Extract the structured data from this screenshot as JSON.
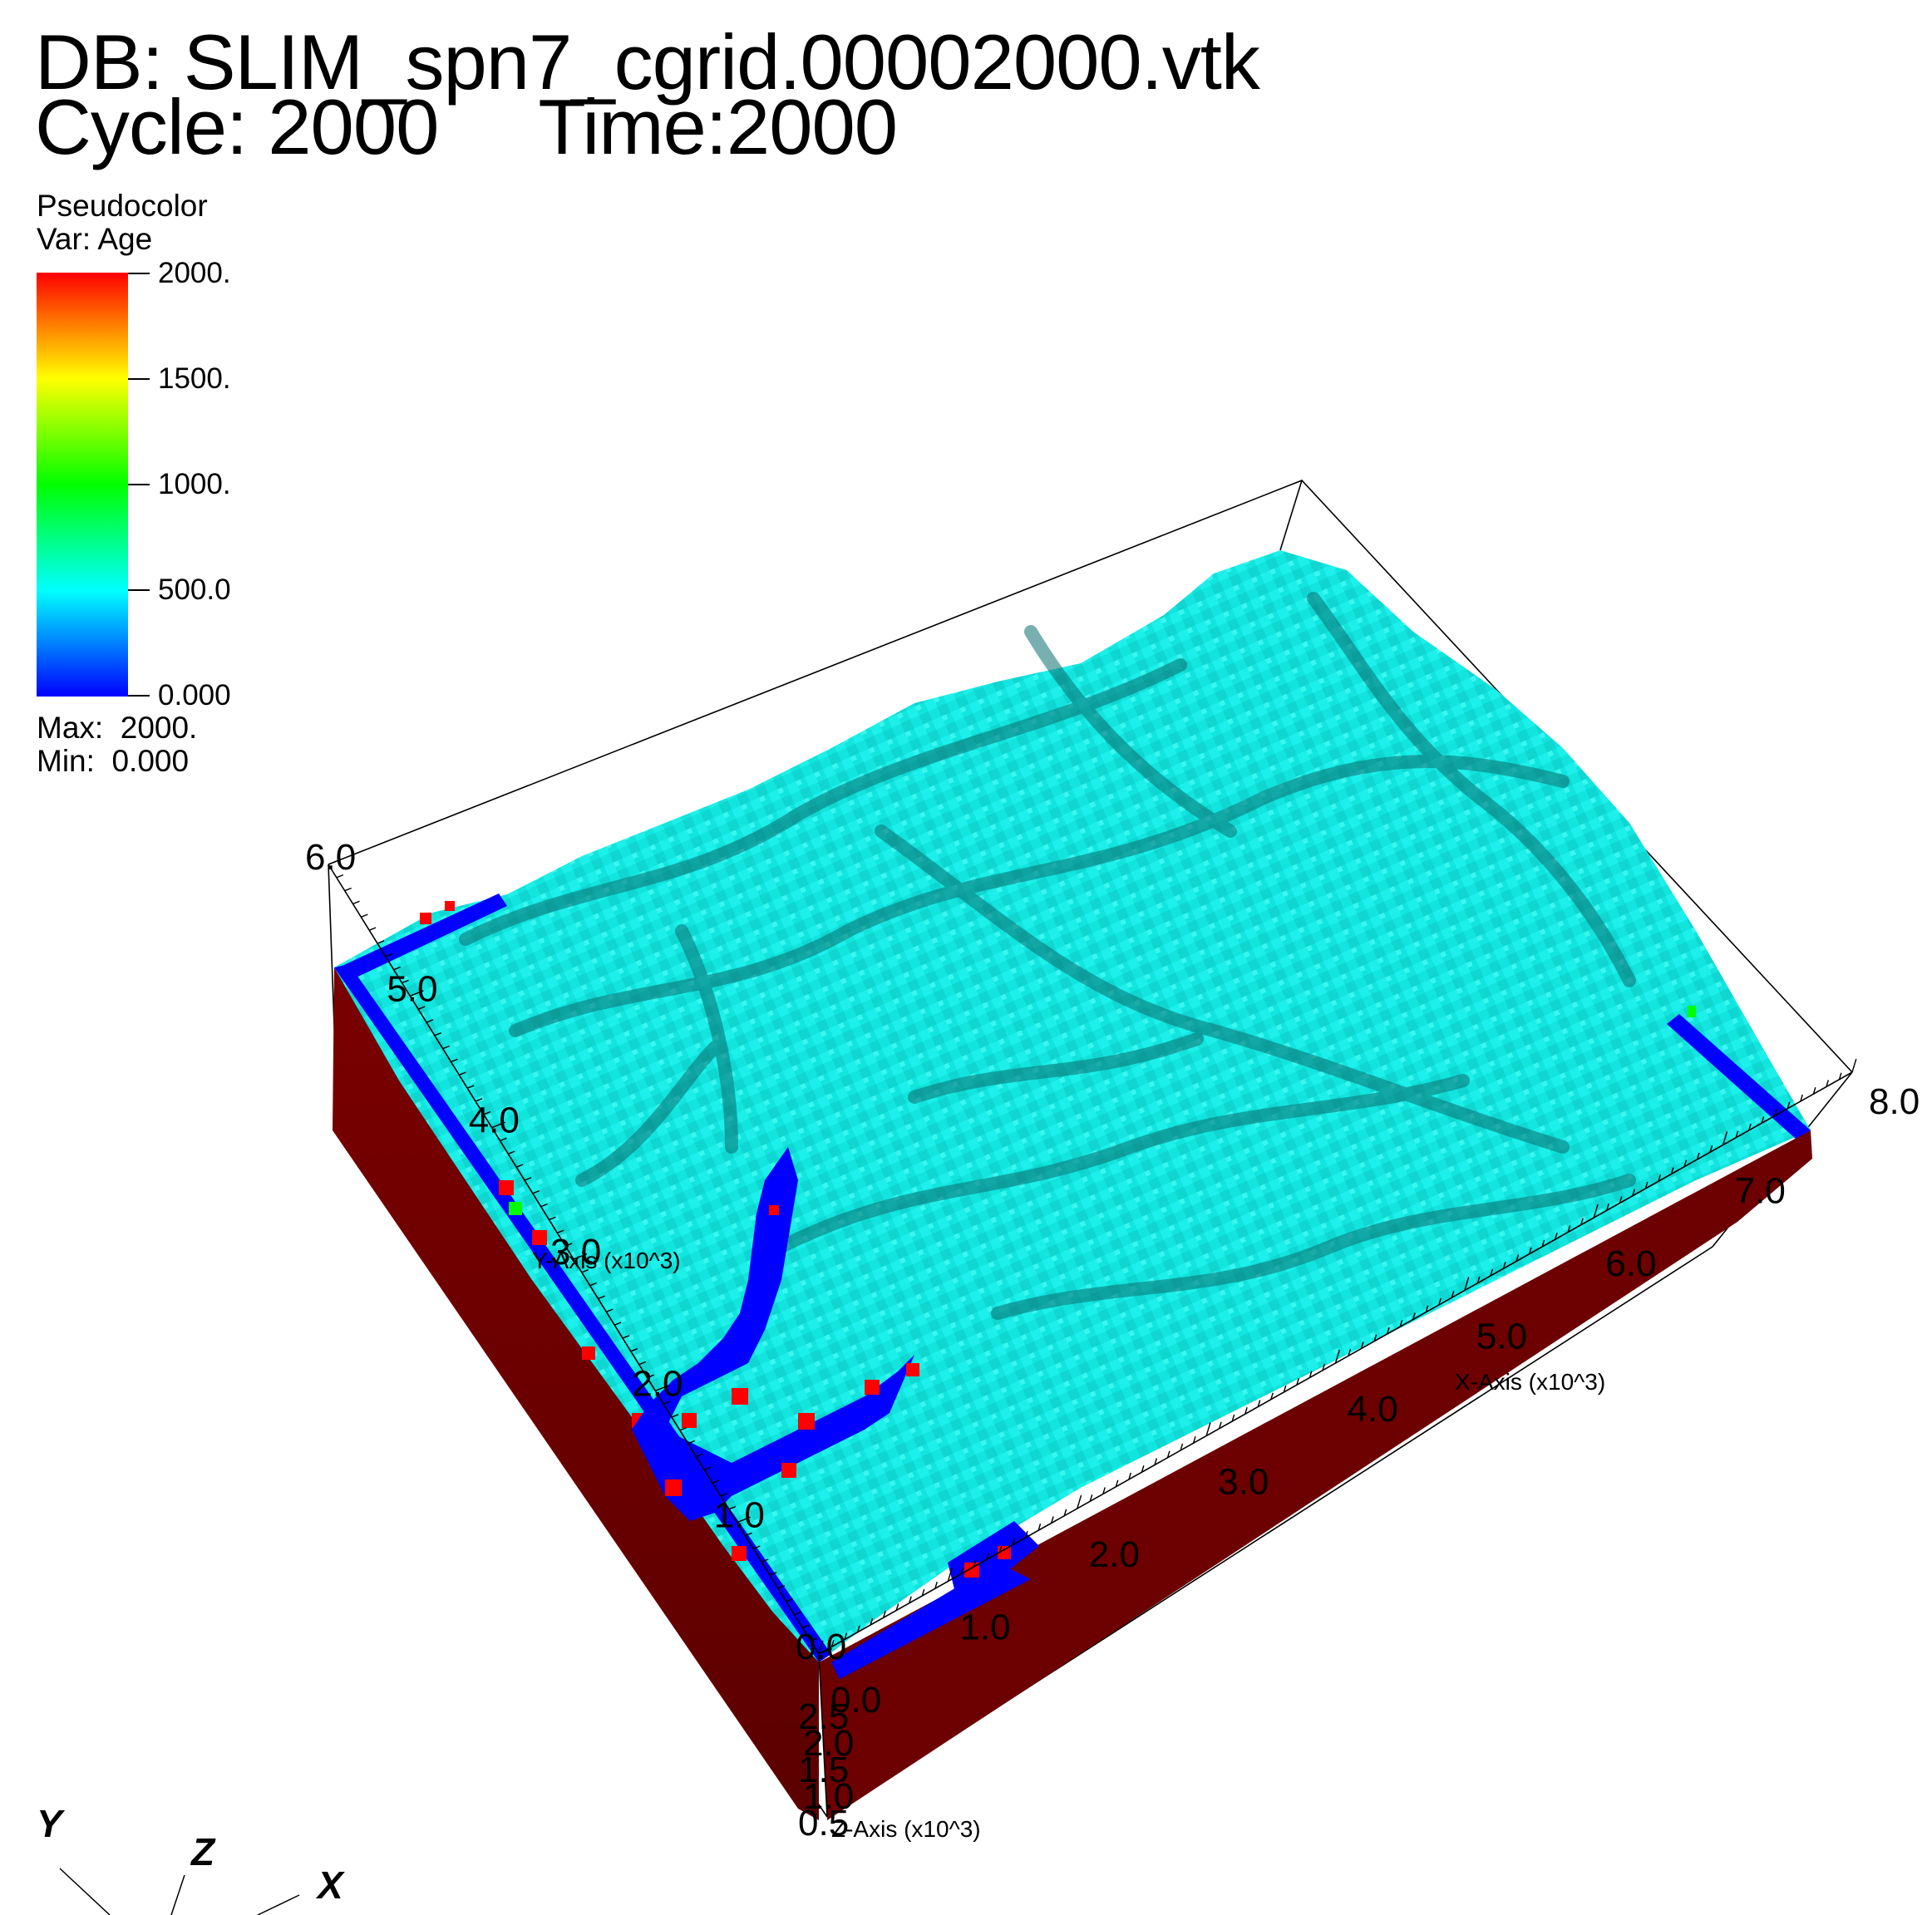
{
  "header": {
    "db_label": "DB: SLIM_spn7_cgrid.00002000.vtk",
    "cycle_label": "Cycle: 2000",
    "time_label": "Time:2000"
  },
  "legend": {
    "title": "Pseudocolor",
    "var_label": "Var: Age",
    "ticks": [
      "2000.",
      "1500.",
      "1000.",
      "500.0",
      "0.000"
    ],
    "tick_values": [
      2000,
      1500,
      1000,
      500,
      0
    ],
    "max_label": "Max:  2000.",
    "min_label": "Min:  0.000",
    "colors": [
      "#ff0000",
      "#ff8000",
      "#ffff00",
      "#80ff00",
      "#00ff00",
      "#00ff80",
      "#00ffff",
      "#0080ff",
      "#0000ff"
    ]
  },
  "axes": {
    "x_axis_title": "X-Axis (x10^3)",
    "y_axis_title": "Y-Axis (x10^3)",
    "z_axis_title": "Z-Axis (x10^3)",
    "x_tick_labels": [
      "0.0",
      "1.0",
      "2.0",
      "3.0",
      "4.0",
      "5.0",
      "6.0",
      "7.0",
      "8.0"
    ],
    "y_tick_labels": [
      "0.0",
      "1.0",
      "2.0",
      "3.0",
      "4.0",
      "5.0",
      "6.0"
    ],
    "z_tick_labels": [
      "2.5",
      "2.0",
      "1.5",
      "1.0",
      "0.5"
    ]
  },
  "triad": {
    "x": "X",
    "y": "Y",
    "z": "Z"
  },
  "surface": {
    "top_color": "#10e6e0",
    "ridge_color": "#0c7f80",
    "side_color": "#740000",
    "edge_blue": "#0000ff",
    "edge_red": "#ff0000",
    "edge_green": "#00ff00"
  }
}
